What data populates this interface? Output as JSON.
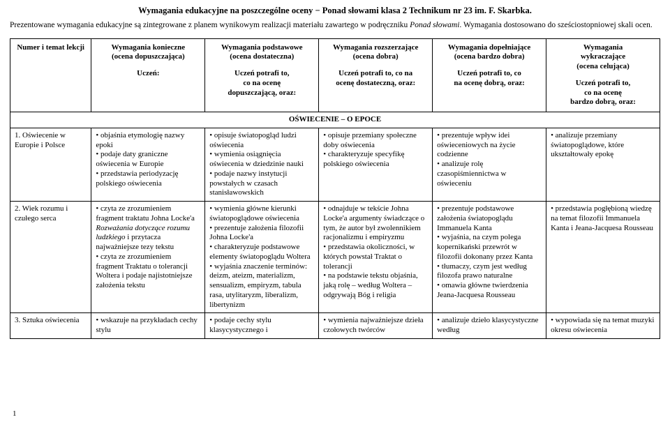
{
  "title": "Wymagania edukacyjne na poszczególne oceny − Ponad słowami klasa 2 Technikum nr 23 im. F. Skarbka.",
  "intro_part1": "Prezentowane wymagania edukacyjne są zintegrowane z planem wynikowym realizacji materiału zawartego w podręczniku ",
  "intro_italic": "Ponad słowami",
  "intro_part2": ". Wymagania dostosowano do sześciostopniowej skali ocen.",
  "page_number": "1",
  "headers": {
    "c0": {
      "title": "Numer i temat lekcji",
      "sub": ""
    },
    "c1": {
      "title": "Wymagania konieczne\n(ocena dopuszczająca)",
      "sub": "Uczeń:"
    },
    "c2": {
      "title": "Wymagania podstawowe\n(ocena dostateczna)",
      "sub": "Uczeń potrafi to,\nco na ocenę\ndopuszczającą, oraz:"
    },
    "c3": {
      "title": "Wymagania rozszerzające\n(ocena dobra)",
      "sub": "Uczeń potrafi to, co na\nocenę dostateczną, oraz:"
    },
    "c4": {
      "title": "Wymagania dopełniające\n(ocena bardzo dobra)",
      "sub": "Uczeń potrafi to, co\nna ocenę dobrą, oraz:"
    },
    "c5": {
      "title": "Wymagania\nwykraczające\n(ocena celująca)",
      "sub": "Uczeń potrafi to,\nco na ocenę\nbardzo dobrą, oraz:"
    }
  },
  "section_title": "OŚWIECENIE – O EPOCE",
  "rows": [
    {
      "lesson": "1. Oświecenie w Europie i Polsce",
      "c1": "• objaśnia etymologię nazwy epoki\n• podaje daty graniczne oświecenia w Europie\n• przedstawia periodyzację polskiego oświecenia",
      "c2": "• opisuje światopogląd ludzi oświecenia\n• wymienia osiągnięcia oświecenia w dziedzinie nauki\n• podaje nazwy instytucji powstałych w czasach stanisławowskich",
      "c3": "• opisuje przemiany społeczne doby oświecenia\n• charakteryzuje specyfikę polskiego oświecenia",
      "c4": "• prezentuje wpływ idei oświeceniowych na życie codzienne\n• analizuje rolę czasopiśmiennictwa w oświeceniu",
      "c5": "• analizuje przemiany światopoglądowe, które ukształtowały epokę"
    },
    {
      "lesson": "2. Wiek rozumu i czułego serca",
      "c1": "• czyta ze zrozumieniem fragment traktatu Johna Locke'a Rozważania dotyczące rozumu ludzkiego i przytacza najważniejsze tezy tekstu\n• czyta ze zrozumieniem fragment Traktatu o tolerancji Woltera i podaje najistotniejsze założenia tekstu",
      "c1_italic_ranges": [],
      "c2": "• wymienia główne kierunki światopoglądowe oświecenia\n• prezentuje założenia filozofii Johna Locke'a\n• charakteryzuje podstawowe elementy światopoglądu Woltera\n• wyjaśnia znaczenie terminów: deizm, ateizm, materializm, sensualizm, empiryzm, tabula rasa, utylitaryzm, liberalizm, libertynizm",
      "c3": "• odnajduje w tekście Johna Locke'a argumenty świadczące o tym, że autor był zwolennikiem racjonalizmu i empiryzmu\n• przedstawia okoliczności, w których powstał Traktat o tolerancji\n• na podstawie tekstu objaśnia, jaką rolę – według Woltera – odgrywają Bóg i religia",
      "c4": "• prezentuje podstawowe założenia światopoglądu Immanuela Kanta\n• wyjaśnia, na czym polega kopernikański przewrót w filozofii dokonany przez Kanta\n• tłumaczy, czym jest według filozofa prawo naturalne\n• omawia główne twierdzenia Jeana-Jacquesa Rousseau",
      "c5": "• przedstawia pogłębioną wiedzę na temat filozofii Immanuela Kanta i Jeana-Jacquesa Rousseau"
    },
    {
      "lesson": "3. Sztuka oświecenia",
      "c1": "• wskazuje na przykładach cechy stylu",
      "c2": "• podaje cechy stylu klasycystycznego i",
      "c3": "• wymienia najważniejsze dzieła czołowych twórców",
      "c4": "• analizuje dzieło klasycystyczne według",
      "c5": "• wypowiada się na temat muzyki okresu oświecenia"
    }
  ]
}
